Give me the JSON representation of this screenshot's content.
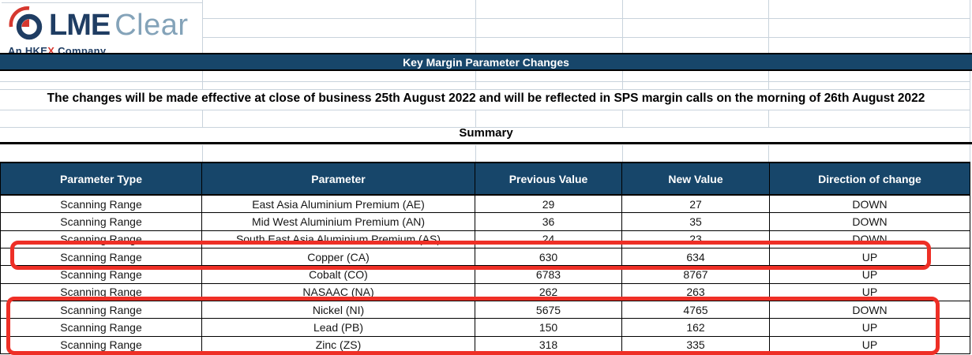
{
  "colors": {
    "navy": "#17466a",
    "red": "#ee2f26",
    "logo_navy": "#1f3d63",
    "logo_gray": "#84a3b9",
    "logo_red": "#d6382f",
    "gridline": "#c9d3dc"
  },
  "logo": {
    "brand_bold": "LME",
    "brand_light": "Clear",
    "tagline_pre": "An HKE",
    "tagline_x": "X",
    "tagline_post": " Company"
  },
  "banner": {
    "title": "Key Margin Parameter Changes"
  },
  "notice": {
    "text": "The changes will be made effective at close of business 25th August 2022 and will be reflected in SPS margin calls on the morning of 26th August 2022"
  },
  "summary": {
    "label": "Summary"
  },
  "table": {
    "columns": [
      "Parameter Type",
      "Parameter",
      "Previous Value",
      "New Value",
      "Direction of change"
    ],
    "rows": [
      [
        "Scanning Range",
        "East Asia Aluminium Premium (AE)",
        "29",
        "27",
        "DOWN"
      ],
      [
        "Scanning Range",
        "Mid West Aluminium Premium (AN)",
        "36",
        "35",
        "DOWN"
      ],
      [
        "Scanning Range",
        "South East Asia Aluminium Premium (AS)",
        "24",
        "23",
        "DOWN"
      ],
      [
        "Scanning Range",
        "Copper (CA)",
        "630",
        "634",
        "UP"
      ],
      [
        "Scanning Range",
        "Cobalt (CO)",
        "6783",
        "8767",
        "UP"
      ],
      [
        "Scanning Range",
        "NASAAC (NA)",
        "262",
        "263",
        "UP"
      ],
      [
        "Scanning Range",
        "Nickel (NI)",
        "5675",
        "4765",
        "DOWN"
      ],
      [
        "Scanning Range",
        "Lead (PB)",
        "150",
        "162",
        "UP"
      ],
      [
        "Scanning Range",
        "Zinc (ZS)",
        "318",
        "335",
        "UP"
      ]
    ],
    "highlighted_row_ranges": [
      {
        "first_row": 3,
        "last_row": 3,
        "note": "red box around Copper (CA) row"
      },
      {
        "first_row": 6,
        "last_row": 8,
        "note": "red box around Nickel (NI), Lead (PB), Zinc (ZS) rows"
      }
    ]
  }
}
